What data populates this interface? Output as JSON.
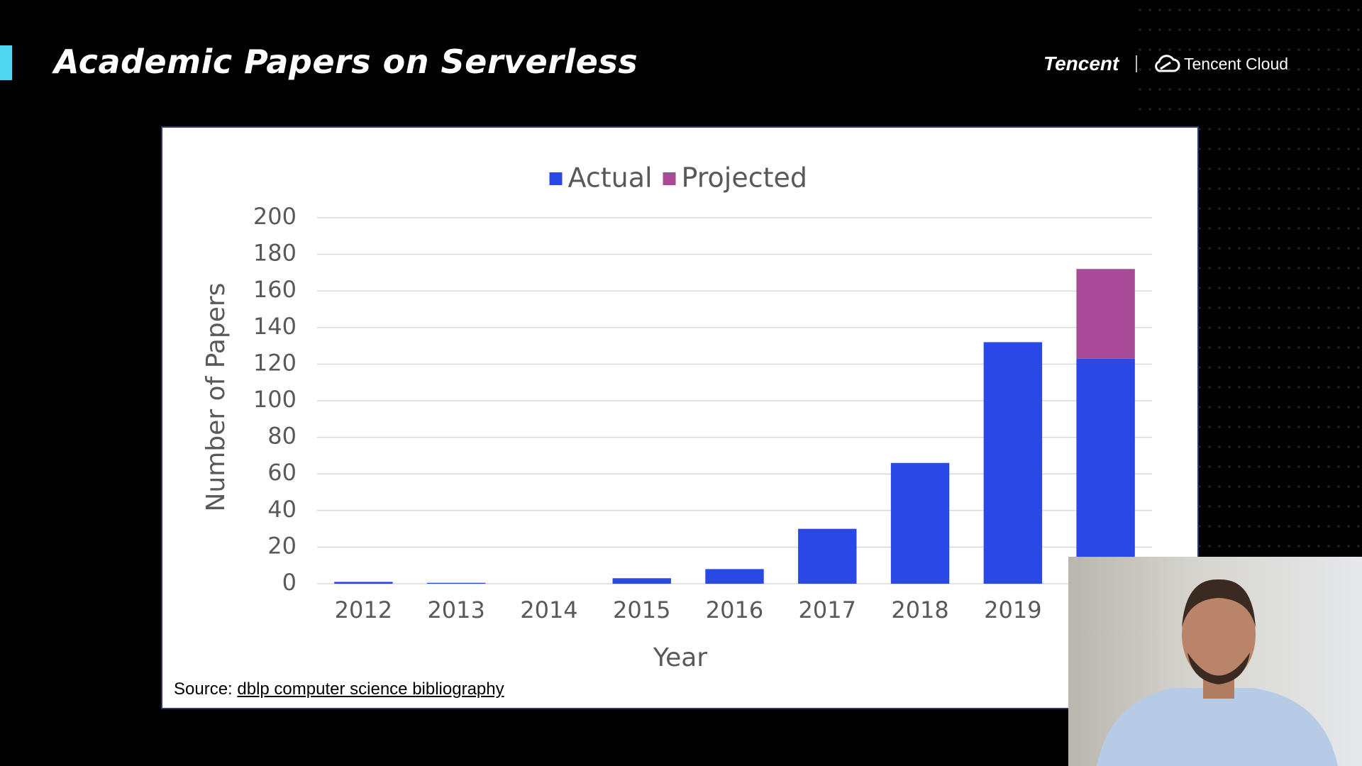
{
  "header": {
    "title": "Academic Papers on Serverless",
    "logo": "Tencent",
    "logo_cloud": "Tencent Cloud"
  },
  "chart_data": {
    "type": "bar",
    "stacked": true,
    "x_label": "Year",
    "y_label": "Number of Papers",
    "categories": [
      "2012",
      "2013",
      "2014",
      "2015",
      "2016",
      "2017",
      "2018",
      "2019",
      null
    ],
    "series": [
      {
        "name": "Actual",
        "color": "#2a48e6",
        "values": [
          1,
          0.5,
          0,
          3,
          8,
          30,
          66,
          132,
          123
        ]
      },
      {
        "name": "Projected",
        "color": "#a84b96",
        "values": [
          null,
          null,
          null,
          null,
          null,
          null,
          null,
          null,
          49
        ]
      }
    ],
    "ylim": [
      0,
      200
    ],
    "yticks": [
      0,
      20,
      40,
      60,
      80,
      100,
      120,
      140,
      160,
      180,
      200
    ],
    "grid": true,
    "legend": "top"
  },
  "source": {
    "label": "Source:",
    "link": "dblp computer science bibliography"
  }
}
